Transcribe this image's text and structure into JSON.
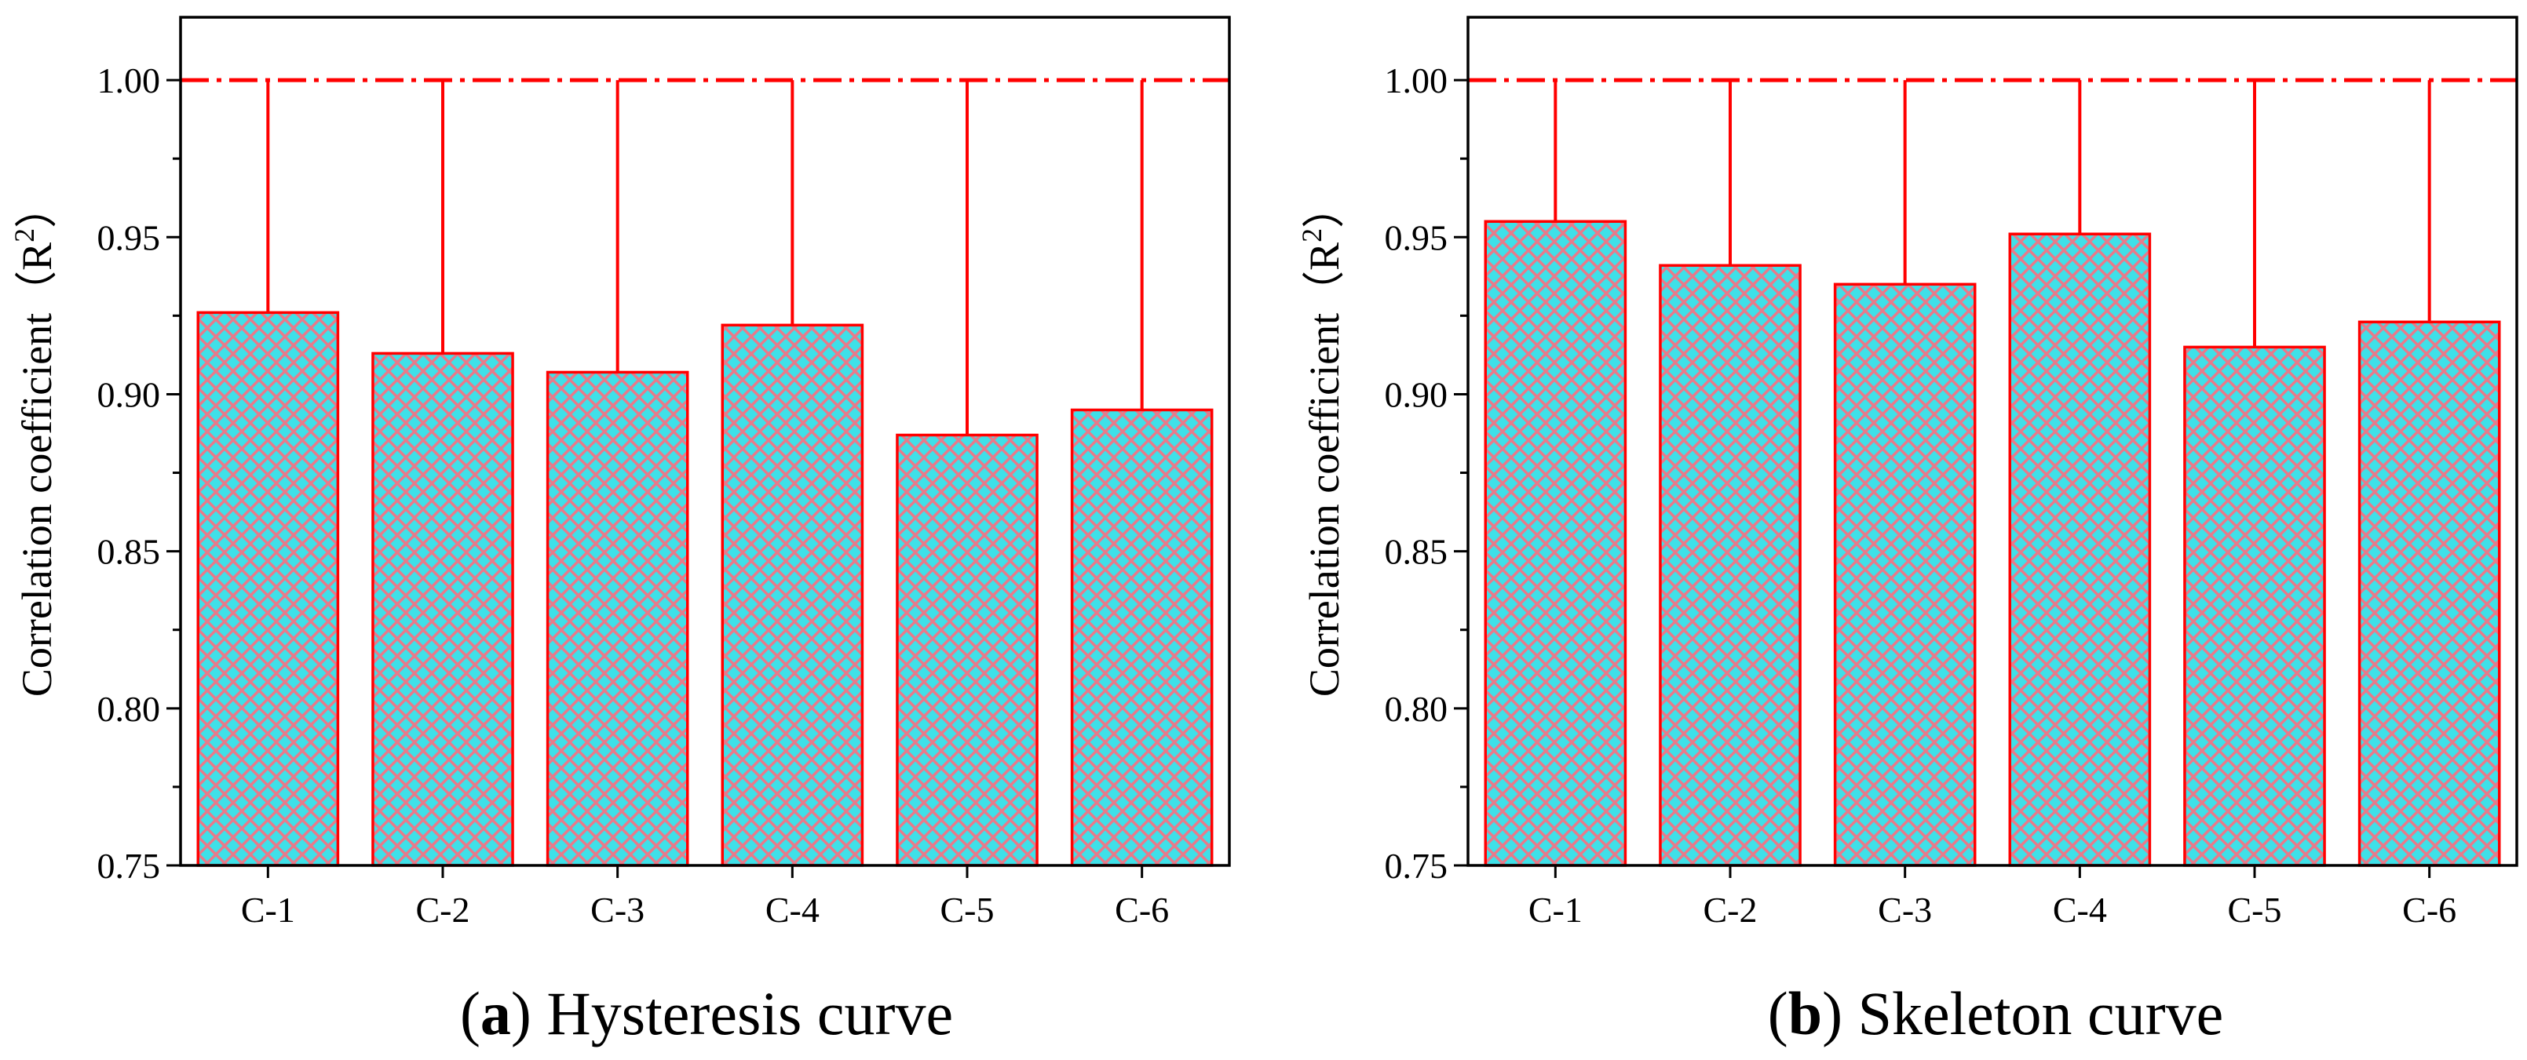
{
  "colors": {
    "bar_fill": "#3fe0e8",
    "hatch": "#e87a8a",
    "bar_edge": "#ff0000",
    "ref_line": "#ff0000",
    "axis": "#000000"
  },
  "chart_data": [
    {
      "type": "bar",
      "panel_letter": "a",
      "caption_rest": " Hysteresis curve",
      "ylabel": "Correlation coefficient（R",
      "ylabel_sup": "2",
      "ylabel_close": "）",
      "categories": [
        "C-1",
        "C-2",
        "C-3",
        "C-4",
        "C-5",
        "C-6"
      ],
      "values": [
        0.926,
        0.913,
        0.907,
        0.922,
        0.887,
        0.895
      ],
      "error_top": 1.0,
      "reference_line": 1.0,
      "ylim": [
        0.75,
        1.02
      ],
      "yticks": [
        "0.75",
        "0.80",
        "0.85",
        "0.90",
        "0.95",
        "1.00"
      ]
    },
    {
      "type": "bar",
      "panel_letter": "b",
      "caption_rest": " Skeleton curve",
      "ylabel": "Correlation coefficient（R",
      "ylabel_sup": "2",
      "ylabel_close": "）",
      "categories": [
        "C-1",
        "C-2",
        "C-3",
        "C-4",
        "C-5",
        "C-6"
      ],
      "values": [
        0.955,
        0.941,
        0.935,
        0.951,
        0.915,
        0.923
      ],
      "error_top": 1.0,
      "reference_line": 1.0,
      "ylim": [
        0.75,
        1.02
      ],
      "yticks": [
        "0.75",
        "0.80",
        "0.85",
        "0.90",
        "0.95",
        "1.00"
      ]
    }
  ]
}
